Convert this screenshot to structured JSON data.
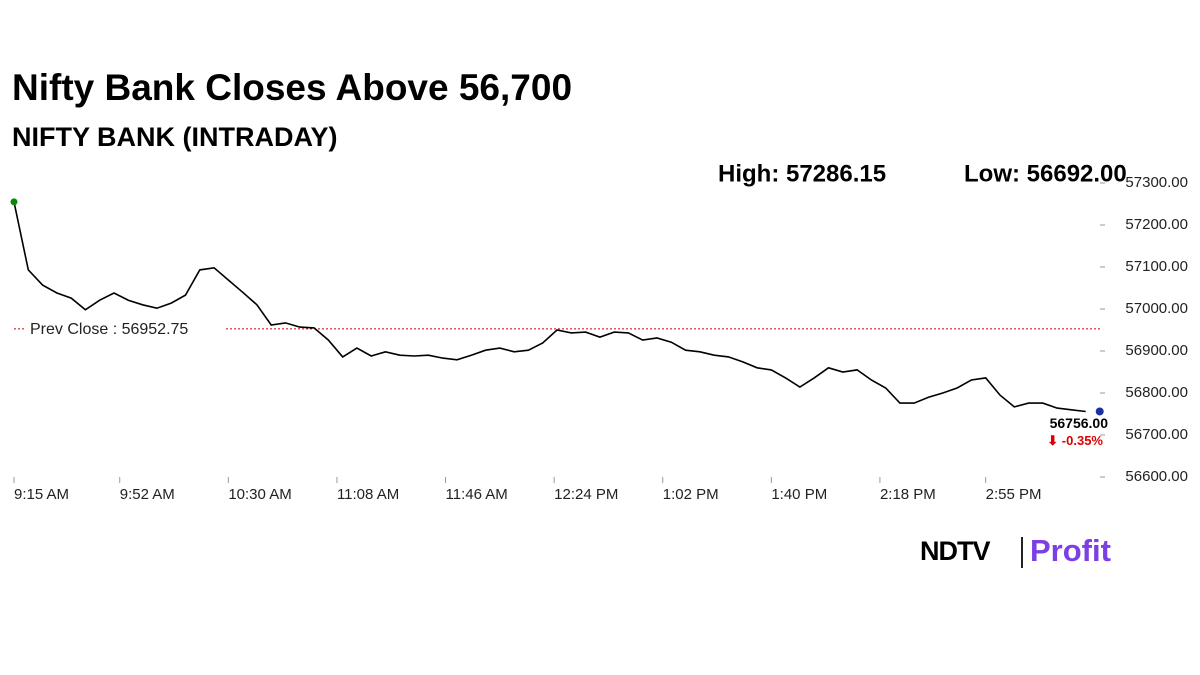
{
  "chart_data": {
    "type": "line",
    "title": "Nifty Bank Closes Above 56,700",
    "subtitle": "NIFTY BANK (INTRADAY)",
    "annotations": [
      "High: 57286.15",
      "Low: 56692.00"
    ],
    "prev_close": {
      "value": 56952.75,
      "label": "Prev Close : 56952.75"
    },
    "last_value": {
      "value": 56756,
      "label": "56756.00"
    },
    "change": {
      "value": -0.35,
      "label": "⬇ -0.35%"
    },
    "logo": [
      "NDTV",
      "Profit"
    ],
    "color": "#000000",
    "x": [
      "9:15 AM",
      "9:20 AM",
      "9:25 AM",
      "9:30 AM",
      "9:35 AM",
      "9:40 AM",
      "9:45 AM",
      "9:50 AM",
      "9:55 AM",
      "10:00 AM",
      "10:05 AM",
      "10:10 AM",
      "10:15 AM",
      "10:20 AM",
      "10:25 AM",
      "10:30 AM",
      "10:35 AM",
      "10:40 AM",
      "10:45 AM",
      "10:50 AM",
      "10:55 AM",
      "11:00 AM",
      "11:05 AM",
      "11:10 AM",
      "11:15 AM",
      "11:20 AM",
      "11:25 AM",
      "11:30 AM",
      "11:35 AM",
      "11:40 AM",
      "11:45 AM",
      "11:50 AM",
      "11:55 AM",
      "12:00 PM",
      "12:05 PM",
      "12:10 PM",
      "12:15 PM",
      "12:20 PM",
      "12:25 PM",
      "12:30 PM",
      "12:35 PM",
      "12:40 PM",
      "12:45 PM",
      "12:50 PM",
      "12:55 PM",
      "1:00 PM",
      "1:05 PM",
      "1:10 PM",
      "1:15 PM",
      "1:20 PM",
      "1:25 PM",
      "1:30 PM",
      "1:35 PM",
      "1:40 PM",
      "1:45 PM",
      "1:50 PM",
      "1:55 PM",
      "2:00 PM",
      "2:05 PM",
      "2:10 PM",
      "2:15 PM",
      "2:20 PM",
      "2:25 PM",
      "2:30 PM",
      "2:35 PM",
      "2:40 PM",
      "2:45 PM",
      "2:50 PM",
      "2:55 PM",
      "3:00 PM",
      "3:05 PM",
      "3:10 PM",
      "3:15 PM",
      "3:20 PM",
      "3:25 PM",
      "3:30 PM"
    ],
    "values": [
      57255,
      57093,
      57057,
      57038,
      57026,
      56998,
      57021,
      57038,
      57021,
      57010,
      57002,
      57014,
      57033,
      57093,
      57098,
      57069,
      57040,
      57010,
      56962,
      56967,
      56957,
      56955,
      56926,
      56886,
      56907,
      56888,
      56898,
      56890,
      56888,
      56890,
      56883,
      56879,
      56890,
      56902,
      56907,
      56898,
      56902,
      56919,
      56950,
      56943,
      56945,
      56933,
      56945,
      56943,
      56926,
      56931,
      56921,
      56902,
      56898,
      56890,
      56886,
      56874,
      56860,
      56855,
      56836,
      56814,
      56836,
      56860,
      56850,
      56855,
      56831,
      56812,
      56776,
      56776,
      56790,
      56800,
      56812,
      56831,
      56836,
      56795,
      56767,
      56776,
      56776,
      56764,
      56760,
      56756
    ],
    "xlim": [
      "9:15 AM",
      "3:35 PM"
    ],
    "xticks": [
      "9:15 AM",
      "9:52 AM",
      "10:30 AM",
      "11:08 AM",
      "11:46 AM",
      "12:24 PM",
      "1:02 PM",
      "1:40 PM",
      "2:18 PM",
      "2:55 PM"
    ],
    "ylim": [
      56600,
      57300
    ],
    "yticks": [
      {
        "value": 56600,
        "label": "56600.00"
      },
      {
        "value": 56700,
        "label": "56700.00"
      },
      {
        "value": 56800,
        "label": "56800.00"
      },
      {
        "value": 56900,
        "label": "56900.00"
      },
      {
        "value": 57000,
        "label": "57000.00"
      },
      {
        "value": 57100,
        "label": "57100.00"
      },
      {
        "value": 57200,
        "label": "57200.00"
      },
      {
        "value": 57300,
        "label": "57300.00"
      }
    ]
  }
}
